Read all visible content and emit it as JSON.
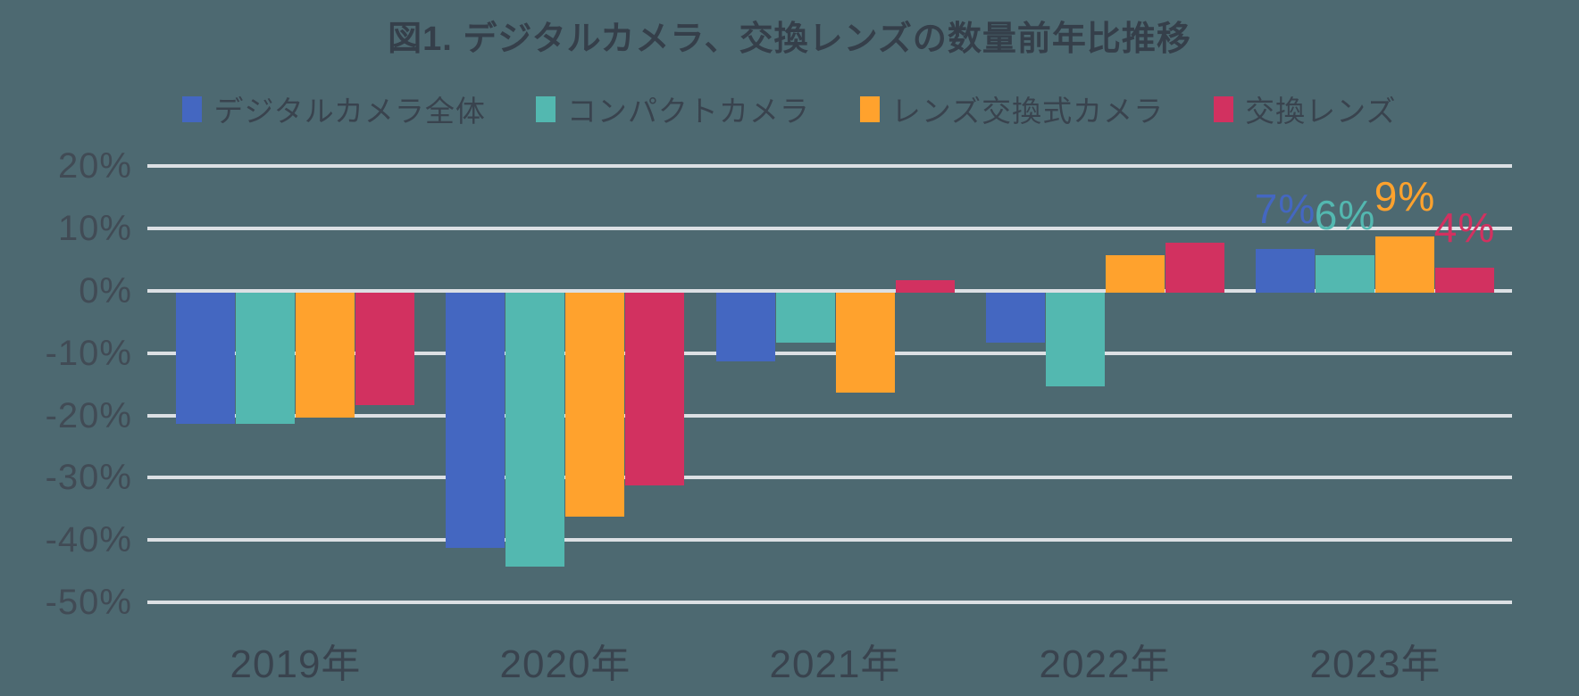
{
  "title": "図1. デジタルカメラ、交換レンズの数量前年比推移",
  "colors": {
    "background": "#4D6971",
    "gridline": "#DCE0E4",
    "title_text": "#353F4A",
    "axis_text": "#414B55"
  },
  "chart_data": {
    "type": "bar",
    "title": "図1. デジタルカメラ、交換レンズの数量前年比推移",
    "categories": [
      "2019年",
      "2020年",
      "2021年",
      "2022年",
      "2023年"
    ],
    "series": [
      {
        "name": "デジタルカメラ全体",
        "color": "#4467C1",
        "values": [
          -21,
          -41,
          -11,
          -8,
          7
        ]
      },
      {
        "name": "コンパクトカメラ",
        "color": "#53B8B0",
        "values": [
          -21,
          -44,
          -8,
          -15,
          6
        ]
      },
      {
        "name": "レンズ交換式カメラ",
        "color": "#FFA22D",
        "values": [
          -20,
          -36,
          -16,
          6,
          9
        ]
      },
      {
        "name": "交換レンズ",
        "color": "#D23160",
        "values": [
          -18,
          -31,
          2,
          8,
          4
        ]
      }
    ],
    "data_labels_last_category": [
      "7%",
      "6%",
      "9%",
      "4%"
    ],
    "ytick_labels": [
      "20%",
      "10%",
      "0%",
      "-10%",
      "-20%",
      "-30%",
      "-40%",
      "-50%"
    ],
    "ylim": [
      -50,
      20
    ],
    "grid": true,
    "legend_position": "top"
  }
}
